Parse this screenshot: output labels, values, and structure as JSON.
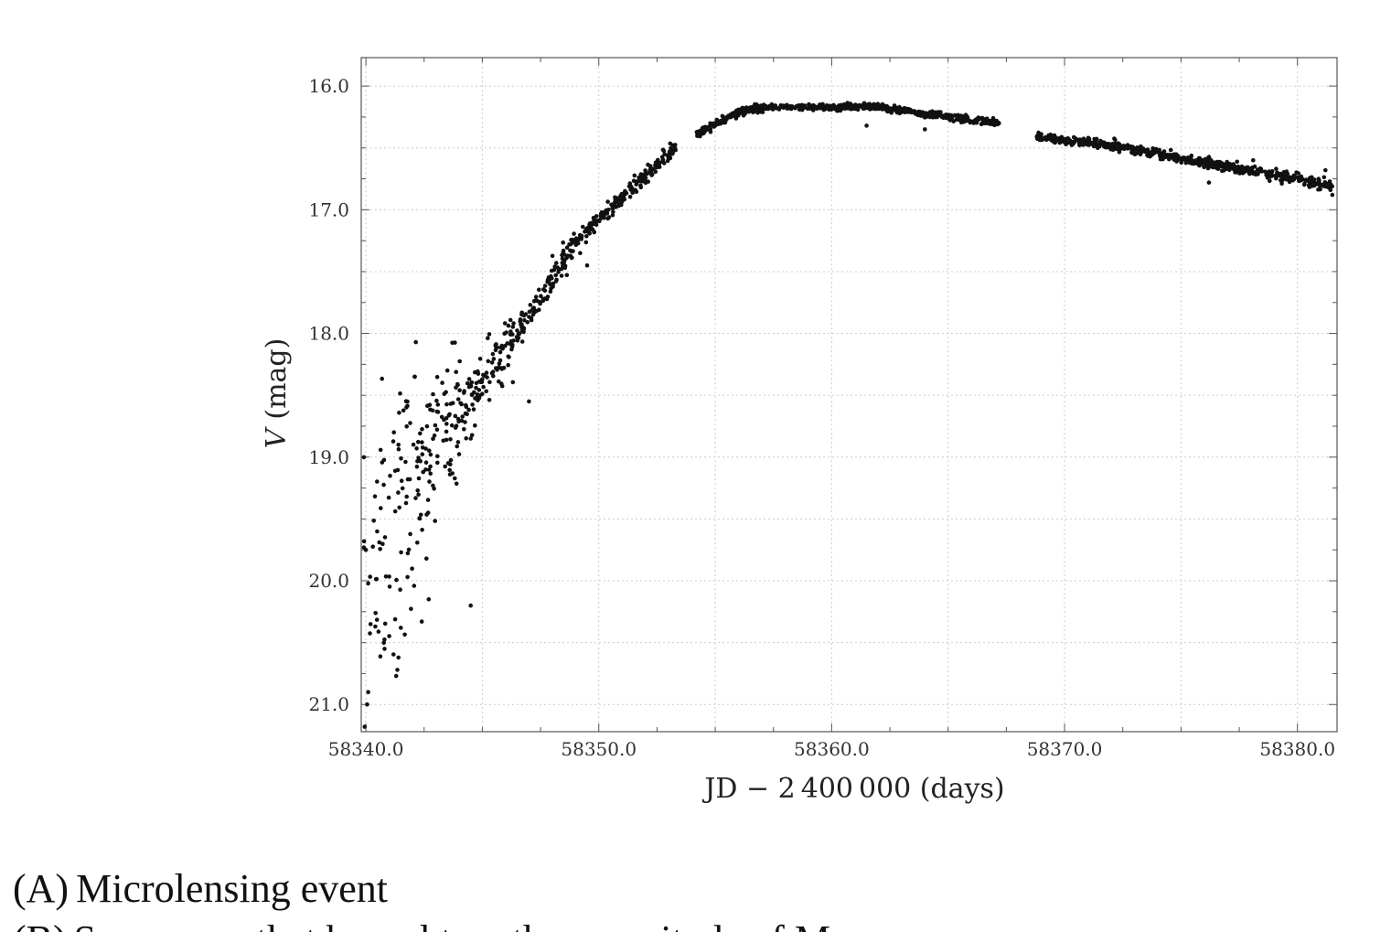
{
  "chart_data": {
    "type": "scatter",
    "title": "",
    "xlabel": "JD − 2 400 000 (days)",
    "ylabel": "V (mag)",
    "ylabel_italic": "V",
    "ylabel_unit": "(mag)",
    "xlim": [
      58339.8,
      58381.7
    ],
    "ylim": [
      21.22,
      15.77
    ],
    "y_inverted": true,
    "x_ticks": [
      58340.0,
      58350.0,
      58360.0,
      58370.0,
      58380.0
    ],
    "x_tick_labels": [
      "58340.0",
      "58350.0",
      "58360.0",
      "58370.0",
      "58380.0"
    ],
    "y_ticks": [
      16.0,
      17.0,
      18.0,
      19.0,
      20.0,
      21.0
    ],
    "y_tick_labels": [
      "16.0",
      "17.0",
      "18.0",
      "19.0",
      "20.0",
      "21.0"
    ],
    "grid": true,
    "legend": "none",
    "marker_color": "#111111",
    "segments": [
      {
        "x_start": 58339.9,
        "x_end": 58342.2,
        "y_start": 19.9,
        "y_end": 19.3,
        "scatter": 0.55,
        "n": 80
      },
      {
        "x_start": 58342.2,
        "x_end": 58344.0,
        "y_start": 19.1,
        "y_end": 18.65,
        "scatter": 0.28,
        "n": 90
      },
      {
        "x_start": 58344.0,
        "x_end": 58346.5,
        "y_start": 18.65,
        "y_end": 18.0,
        "scatter": 0.12,
        "n": 110
      },
      {
        "x_start": 58346.5,
        "x_end": 58349.0,
        "y_start": 18.0,
        "y_end": 17.25,
        "scatter": 0.06,
        "n": 110
      },
      {
        "x_start": 58349.0,
        "x_end": 58353.3,
        "y_start": 17.25,
        "y_end": 16.5,
        "scatter": 0.03,
        "n": 200
      },
      {
        "x_start": 58354.2,
        "x_end": 58357.5,
        "y_start": 16.4,
        "y_end": 16.17,
        "scatter": 0.015,
        "n": 200,
        "curve": "ease-out"
      },
      {
        "x_start": 58357.5,
        "x_end": 58362.0,
        "y_start": 16.17,
        "y_end": 16.17,
        "scatter": 0.012,
        "n": 220
      },
      {
        "x_start": 58362.0,
        "x_end": 58367.2,
        "y_start": 16.17,
        "y_end": 16.3,
        "scatter": 0.015,
        "n": 220
      },
      {
        "x_start": 58368.8,
        "x_end": 58372.0,
        "y_start": 16.41,
        "y_end": 16.48,
        "scatter": 0.015,
        "n": 160
      },
      {
        "x_start": 58372.0,
        "x_end": 58376.0,
        "y_start": 16.48,
        "y_end": 16.62,
        "scatter": 0.018,
        "n": 200
      },
      {
        "x_start": 58376.0,
        "x_end": 58381.5,
        "y_start": 16.62,
        "y_end": 16.8,
        "scatter": 0.022,
        "n": 260
      }
    ],
    "points": [
      {
        "x": 58339.95,
        "y": 21.18
      },
      {
        "x": 58340.05,
        "y": 21.0
      },
      {
        "x": 58340.1,
        "y": 20.9
      },
      {
        "x": 58341.3,
        "y": 20.77
      },
      {
        "x": 58341.35,
        "y": 20.72
      },
      {
        "x": 58341.4,
        "y": 20.62
      },
      {
        "x": 58340.8,
        "y": 20.55
      },
      {
        "x": 58341.5,
        "y": 20.38
      },
      {
        "x": 58340.2,
        "y": 20.35
      },
      {
        "x": 58342.4,
        "y": 20.33
      },
      {
        "x": 58342.7,
        "y": 20.15
      },
      {
        "x": 58344.5,
        "y": 20.2
      },
      {
        "x": 58340.0,
        "y": 19.75
      },
      {
        "x": 58342.6,
        "y": 19.82
      },
      {
        "x": 58341.2,
        "y": 18.8
      },
      {
        "x": 58341.4,
        "y": 18.9
      },
      {
        "x": 58342.1,
        "y": 18.35
      },
      {
        "x": 58343.5,
        "y": 18.3
      },
      {
        "x": 58344.5,
        "y": 18.85
      },
      {
        "x": 58347.0,
        "y": 18.55
      },
      {
        "x": 58349.5,
        "y": 17.45
      },
      {
        "x": 58349.2,
        "y": 17.35
      },
      {
        "x": 58361.5,
        "y": 16.32
      },
      {
        "x": 58364.0,
        "y": 16.35
      },
      {
        "x": 58376.2,
        "y": 16.78
      },
      {
        "x": 58378.1,
        "y": 16.6
      },
      {
        "x": 58381.2,
        "y": 16.68
      },
      {
        "x": 58381.5,
        "y": 16.88
      }
    ]
  },
  "options": [
    {
      "letter": "(A)",
      "text": "Microlensing event"
    },
    {
      "letter": "(B)",
      "text": "Supernova that brought on the magnitude of M..."
    }
  ]
}
